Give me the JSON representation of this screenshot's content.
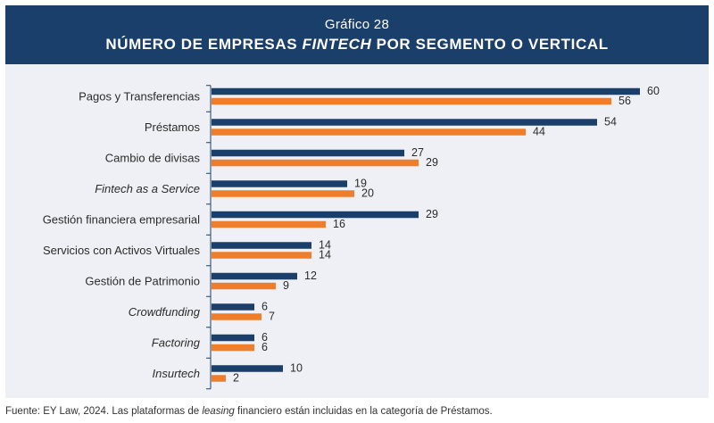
{
  "header": {
    "subtitle": "Gráfico 28",
    "title_before": "NÚMERO DE EMPRESAS ",
    "title_italic": "FINTECH",
    "title_after": " POR SEGMENTO O VERTICAL"
  },
  "footer": {
    "text_before": "Fuente: EY Law, 2024. Las plataformas de ",
    "text_italic": "leasing",
    "text_after": " financiero están incluidas en la categoría de Préstamos."
  },
  "colors": {
    "series_1": "#1b3f6b",
    "series_2": "#f07d2a",
    "header_bg": "#1b3f6b",
    "panel_bg": "#eef0f5"
  },
  "chart_data": {
    "type": "bar",
    "orientation": "horizontal",
    "categories": [
      "Pagos y Transferencias",
      "Préstamos",
      "Cambio de divisas",
      "Fintech as a Service",
      "Gestión financiera empresarial",
      "Servicios con Activos Virtuales",
      "Gestión de Patrimonio",
      "Crowdfunding",
      "Factoring",
      "Insurtech"
    ],
    "italic_categories": [
      "Fintech as a Service",
      "Crowdfunding",
      "Factoring",
      "Insurtech"
    ],
    "series": [
      {
        "values": [
          60,
          54,
          27,
          19,
          29,
          14,
          12,
          6,
          6,
          10
        ]
      },
      {
        "values": [
          56,
          44,
          29,
          20,
          16,
          14,
          9,
          7,
          6,
          2
        ]
      }
    ],
    "xlim": [
      0,
      60
    ],
    "grid": false,
    "legend": "none",
    "data_labels": true
  }
}
